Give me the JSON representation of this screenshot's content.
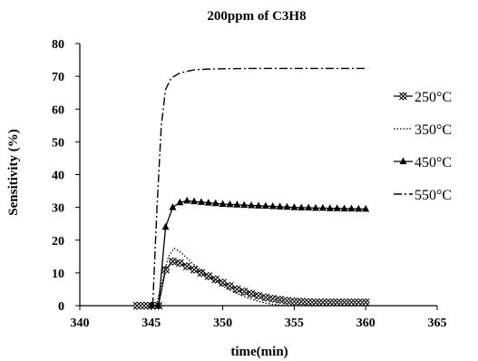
{
  "chart_data": {
    "type": "line",
    "title": "200ppm of C3H8",
    "xlabel": "time(min)",
    "ylabel": "Sensitivity (%)",
    "xlim": [
      340,
      365
    ],
    "ylim": [
      0,
      80
    ],
    "xticks": [
      340,
      345,
      350,
      355,
      360,
      365
    ],
    "yticks": [
      0,
      10,
      20,
      30,
      40,
      50,
      60,
      70,
      80
    ],
    "grid": false,
    "legend_position": "right",
    "series": [
      {
        "name": "250°C",
        "line": "solid",
        "marker": "x-diamond",
        "x": [
          344,
          344.5,
          345,
          345.5,
          346,
          346.5,
          347,
          347.5,
          348,
          348.5,
          349,
          349.5,
          350,
          350.5,
          351,
          351.5,
          352,
          352.5,
          353,
          353.5,
          354,
          354.5,
          355,
          355.5,
          356,
          356.5,
          357,
          357.5,
          358,
          358.5,
          359,
          359.5,
          360
        ],
        "y": [
          0,
          0,
          0,
          0,
          11,
          13.5,
          13,
          12,
          11,
          10,
          9,
          8,
          7,
          6,
          5,
          4.3,
          3.6,
          3,
          2.5,
          2.1,
          1.8,
          1.5,
          1.3,
          1.2,
          1.1,
          1,
          1,
          1,
          1,
          1,
          1,
          1,
          1
        ]
      },
      {
        "name": "350°C",
        "line": "dotted",
        "marker": "none",
        "x": [
          345.4,
          345.8,
          346.2,
          346.6,
          347,
          347.5,
          348,
          348.5,
          349,
          349.5,
          350,
          350.5,
          351,
          351.5,
          352,
          352.5,
          353,
          353.5,
          354,
          354.5,
          355
        ],
        "y": [
          1,
          8,
          15,
          17.5,
          16.5,
          14.5,
          12.5,
          10.8,
          9,
          7.5,
          6,
          4.8,
          3.7,
          2.8,
          2,
          1.3,
          0.8,
          0.4,
          0.2,
          0.1,
          0
        ]
      },
      {
        "name": "450°C",
        "line": "solid",
        "marker": "triangle",
        "x": [
          345,
          345.5,
          346,
          346.5,
          347,
          347.5,
          348,
          348.5,
          349,
          349.5,
          350,
          350.5,
          351,
          351.5,
          352,
          352.5,
          353,
          353.5,
          354,
          354.5,
          355,
          355.5,
          356,
          356.5,
          357,
          357.5,
          358,
          358.5,
          359,
          359.5,
          360
        ],
        "y": [
          0,
          0,
          24,
          30,
          31.5,
          32,
          31.8,
          31.6,
          31.4,
          31.2,
          31,
          30.9,
          30.8,
          30.7,
          30.6,
          30.5,
          30.4,
          30.3,
          30.2,
          30.1,
          30,
          29.9,
          29.9,
          29.8,
          29.8,
          29.7,
          29.7,
          29.6,
          29.6,
          29.5,
          29.5
        ]
      },
      {
        "name": "550°C",
        "line": "dashdot",
        "marker": "none",
        "x": [
          345.1,
          345.4,
          345.7,
          346,
          346.4,
          347,
          348,
          349,
          350,
          352,
          355,
          358,
          360
        ],
        "y": [
          0,
          30,
          55,
          66,
          69.5,
          71,
          72,
          72.2,
          72.3,
          72.4,
          72.4,
          72.4,
          72.4
        ]
      }
    ]
  }
}
